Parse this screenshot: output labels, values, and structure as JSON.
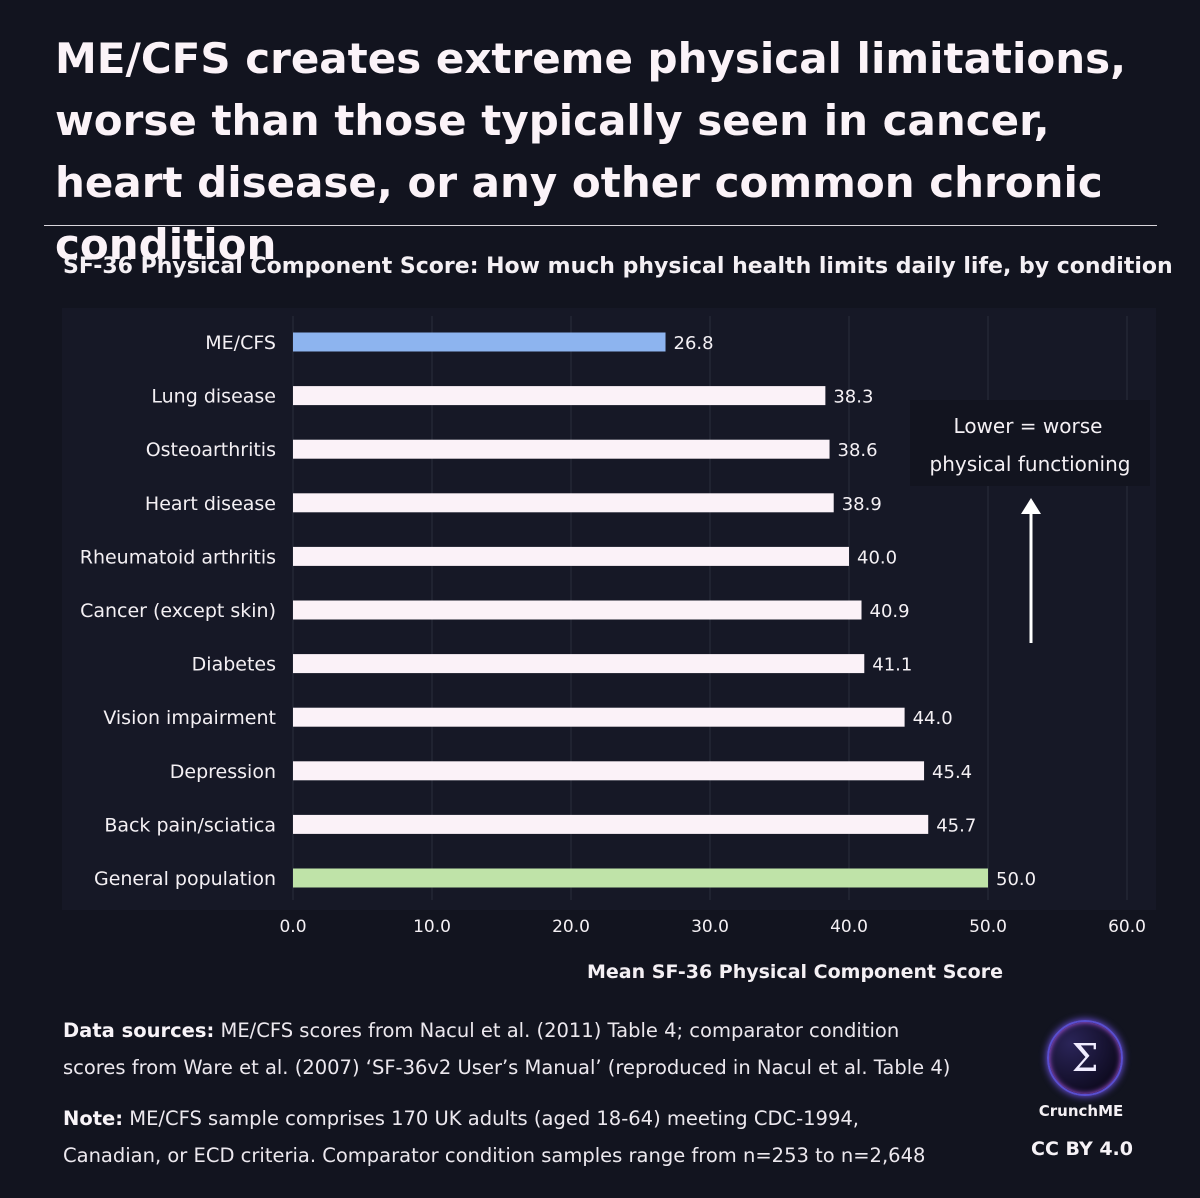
{
  "header": {
    "title": "ME/CFS creates extreme physical limitations, worse than those typically seen in cancer, heart disease, or any other common chronic condition",
    "subtitle": "SF-36 Physical Component Score: How much physical health limits daily life, by condition"
  },
  "chart_data": {
    "type": "bar",
    "orientation": "horizontal",
    "categories": [
      "ME/CFS",
      "Lung disease",
      "Osteoarthritis",
      "Heart disease",
      "Rheumatoid arthritis",
      "Cancer (except skin)",
      "Diabetes",
      "Vision impairment",
      "Depression",
      "Back pain/sciatica",
      "General population"
    ],
    "values": [
      26.8,
      38.3,
      38.6,
      38.9,
      40.0,
      40.9,
      41.1,
      44.0,
      45.4,
      45.7,
      50.0
    ],
    "value_labels": [
      "26.8",
      "38.3",
      "38.6",
      "38.9",
      "40.0",
      "40.9",
      "41.1",
      "44.0",
      "45.4",
      "45.7",
      "50.0"
    ],
    "bar_colors": [
      "#8db4ef",
      "#fbf2f8",
      "#fbf2f8",
      "#fbf2f8",
      "#fbf2f8",
      "#fbf2f8",
      "#fbf2f8",
      "#fbf2f8",
      "#fbf2f8",
      "#fbf2f8",
      "#bfe3a8"
    ],
    "xlabel": "Mean SF-36 Physical Component Score",
    "xlim": [
      0,
      60
    ],
    "xticks": [
      0,
      10,
      20,
      30,
      40,
      50,
      60
    ],
    "xtick_labels": [
      "0.0",
      "10.0",
      "20.0",
      "30.0",
      "40.0",
      "50.0",
      "60.0"
    ],
    "grid": "vertical",
    "annotation": {
      "lines": [
        "Lower = worse",
        "physical functioning"
      ],
      "arrow": "up"
    }
  },
  "footer": {
    "sources_label": "Data sources:",
    "sources_line1": " ME/CFS scores from Nacul et al. (2011) Table 4; comparator condition",
    "sources_line2": "scores from Ware et al. (2007) ‘SF-36v2 User’s Manual’ (reproduced in Nacul et al. Table 4)",
    "note_label": "Note:",
    "note_line1": " ME/CFS sample comprises 170 UK adults (aged 18-64) meeting CDC-1994,",
    "note_line2": "Canadian, or ECD criteria. Comparator condition samples range from n=253 to n=2,648"
  },
  "branding": {
    "logo_icon": "sigma-icon",
    "logo_symbol": "Σ",
    "name": "CrunchME",
    "license": "CC BY 4.0"
  }
}
